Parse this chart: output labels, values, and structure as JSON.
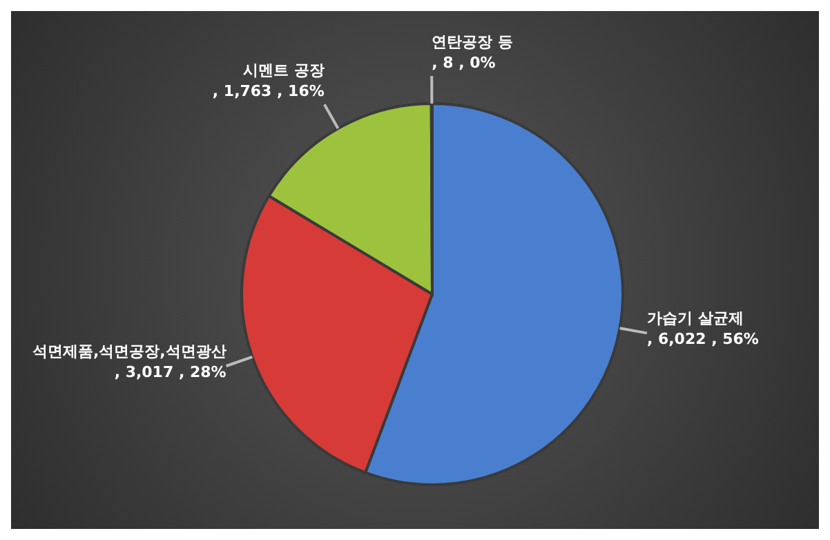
{
  "chart_data": {
    "type": "pie",
    "categories": [
      "가습기 살균제",
      "석면제품,석면공장,석면광산",
      "시멘트 공장",
      "연탄공장 등"
    ],
    "values": [
      6022,
      3017,
      1763,
      8
    ],
    "value_labels": [
      ", 6,022 , 56%",
      ", 3,017 , 28%",
      ", 1,763 , 16%",
      ", 8 , 0%"
    ],
    "colors": [
      "#4a7fd0",
      "#d63b38",
      "#9cc23e",
      "#7f62a8"
    ]
  }
}
